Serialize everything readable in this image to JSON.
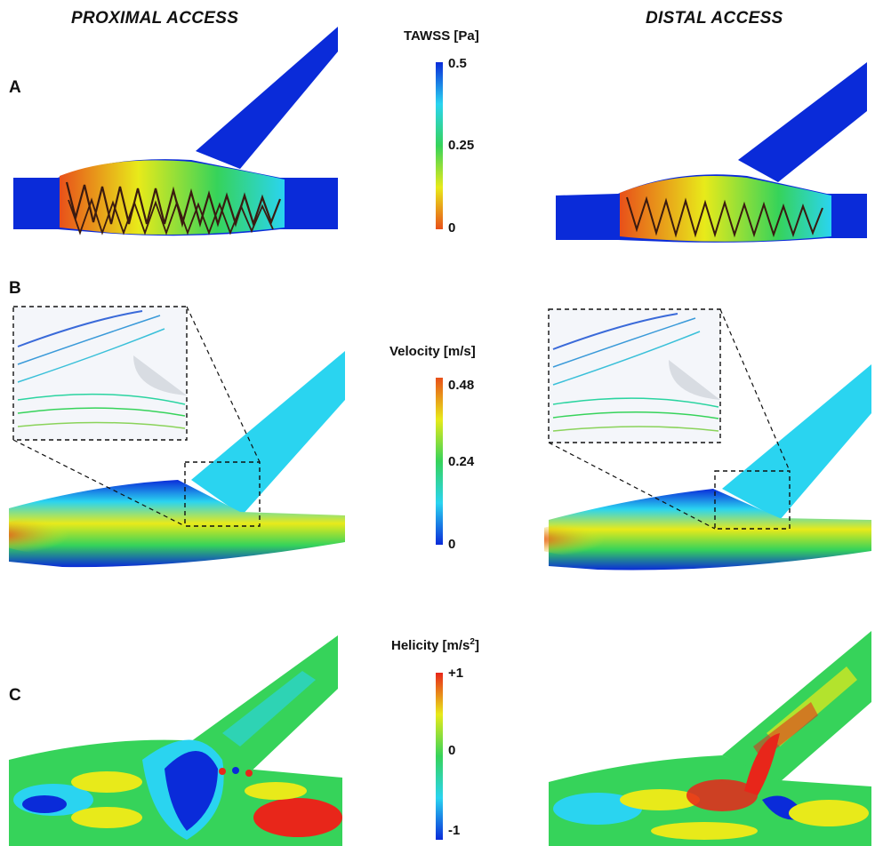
{
  "columns": {
    "left": "PROXIMAL ACCESS",
    "right": "DISTAL ACCESS"
  },
  "rows": {
    "a": "A",
    "b": "B",
    "c": "C"
  },
  "legends": {
    "tawss": {
      "title": "TAWSS [Pa]",
      "max": "0.5",
      "mid": "0.25",
      "min": "0",
      "colors": [
        "#0a2bd9",
        "#2ad4f0",
        "#36d35a",
        "#e8ea1a",
        "#e8501a"
      ]
    },
    "velocity": {
      "title": "Velocity  [m/s]",
      "max": "0.48",
      "mid": "0.24",
      "min": "0",
      "colors": [
        "#e8501a",
        "#e8ea1a",
        "#36d35a",
        "#2ad4f0",
        "#0a2bd9"
      ]
    },
    "helicity": {
      "title_main": "Helicity  [m/s",
      "title_sup": "2",
      "title_end": "]",
      "max": "+1",
      "mid": "0",
      "min": "-1",
      "colors": [
        "#e8261a",
        "#e8ea1a",
        "#36d35a",
        "#2ad4f0",
        "#0a2bd9"
      ]
    }
  }
}
